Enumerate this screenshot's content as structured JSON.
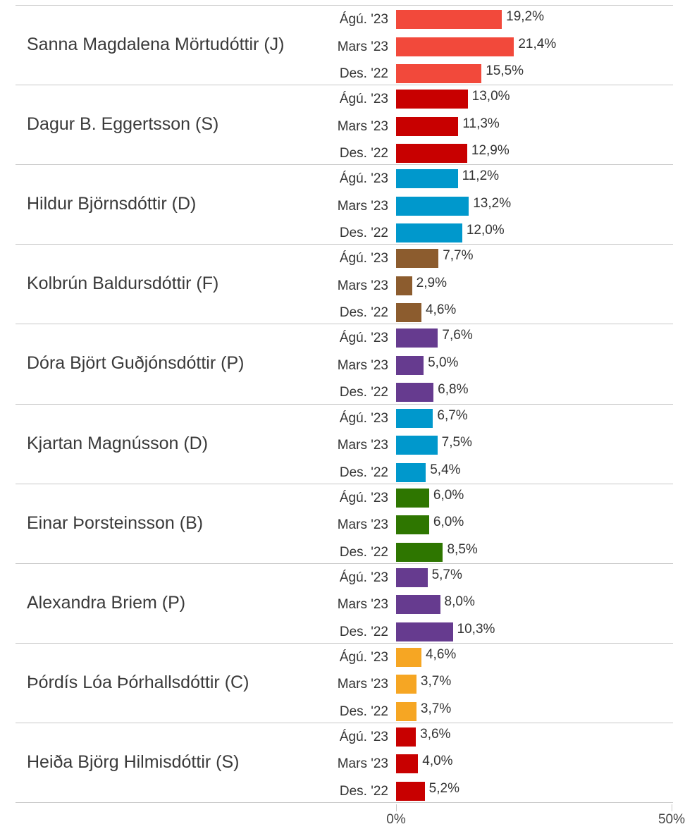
{
  "chart_data": {
    "type": "bar",
    "categories": [
      "Sanna Magdalena Mörtudóttir (J)",
      "Dagur B. Eggertsson (S)",
      "Hildur Björnsdóttir (D)",
      "Kolbrún Baldursdóttir (F)",
      "Dóra Björt Guðjónsdóttir (P)",
      "Kjartan Magnússon (D)",
      "Einar Þorsteinsson (B)",
      "Alexandra Briem (P)",
      "Þórdís Lóa Þórhallsdóttir (C)",
      "Heiða Björg Hilmisdóttir (S)"
    ],
    "colors": [
      "#f2493b",
      "#c80000",
      "#0098cc",
      "#8c5c2e",
      "#663b8f",
      "#0098cc",
      "#2e7600",
      "#663b8f",
      "#f6a623",
      "#c80000"
    ],
    "series": [
      {
        "name": "Ágú. '23",
        "values": [
          19.2,
          13.0,
          11.2,
          7.7,
          7.6,
          6.7,
          6.0,
          5.7,
          4.6,
          3.6
        ],
        "value_labels": [
          "19,2%",
          "13,0%",
          "11,2%",
          "7,7%",
          "7,6%",
          "6,7%",
          "6,0%",
          "5,7%",
          "4,6%",
          "3,6%"
        ]
      },
      {
        "name": "Mars '23",
        "values": [
          21.4,
          11.3,
          13.2,
          2.9,
          5.0,
          7.5,
          6.0,
          8.0,
          3.7,
          4.0
        ],
        "value_labels": [
          "21,4%",
          "11,3%",
          "13,2%",
          "2,9%",
          "5,0%",
          "7,5%",
          "6,0%",
          "8,0%",
          "3,7%",
          "4,0%"
        ]
      },
      {
        "name": "Des. '22",
        "values": [
          15.5,
          12.9,
          12.0,
          4.6,
          6.8,
          5.4,
          8.5,
          10.3,
          3.7,
          5.2
        ],
        "value_labels": [
          "15,5%",
          "12,9%",
          "12,0%",
          "4,6%",
          "6,8%",
          "5,4%",
          "8,5%",
          "10,3%",
          "3,7%",
          "5,2%"
        ]
      }
    ],
    "xlim": [
      0,
      50
    ],
    "xticks": [
      {
        "value": 0,
        "label": "0%"
      },
      {
        "value": 50,
        "label": "50%"
      }
    ]
  }
}
